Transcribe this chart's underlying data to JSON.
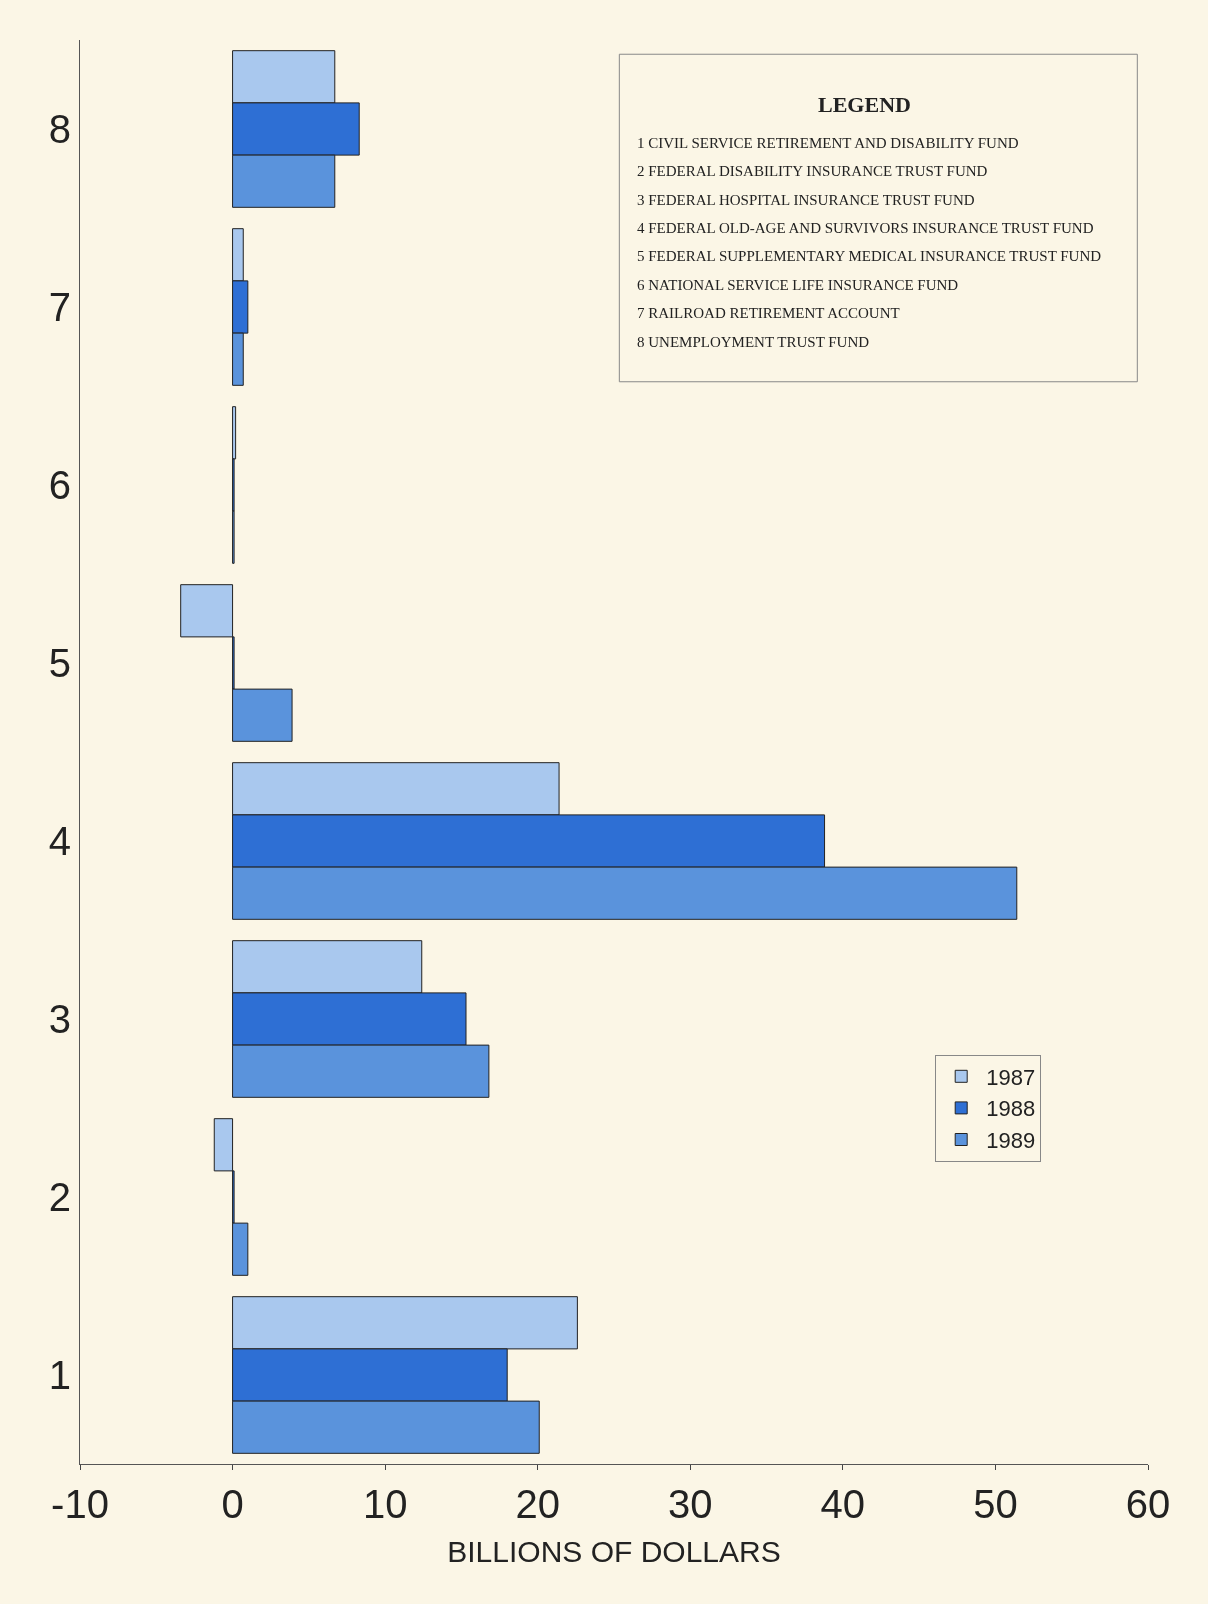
{
  "chart_data": {
    "type": "bar",
    "orientation": "horizontal",
    "xlabel": "BILLIONS OF DOLLARS",
    "categories": [
      "8",
      "7",
      "6",
      "5",
      "4",
      "3",
      "2",
      "1"
    ],
    "series": [
      {
        "name": "1987",
        "color": "#a9c8ee",
        "values": [
          6.7,
          0.7,
          0.2,
          -3.4,
          21.4,
          12.4,
          -1.2,
          22.6
        ]
      },
      {
        "name": "1988",
        "color": "#2e6fd4",
        "values": [
          8.3,
          1.0,
          0.1,
          0.1,
          38.8,
          15.3,
          0.1,
          18.0
        ]
      },
      {
        "name": "1989",
        "color": "#5a93dc",
        "values": [
          6.7,
          0.7,
          0.1,
          3.9,
          51.4,
          16.8,
          1.0,
          20.1
        ]
      }
    ],
    "xlim": [
      -10,
      60
    ],
    "xticks": [
      -10,
      0,
      10,
      20,
      30,
      40,
      50,
      60
    ],
    "grid": false,
    "legend": "bottom right",
    "annotations": [
      "LEGEND",
      "1 CIVIL SERVICE RETIREMENT AND DISABILITY FUND",
      "2 FEDERAL DISABILITY INSURANCE TRUST FUND",
      "3 FEDERAL HOSPITAL INSURANCE TRUST FUND",
      "4 FEDERAL OLD-AGE AND SURVIVORS INSURANCE TRUST FUND",
      "5 FEDERAL SUPPLEMENTARY MEDICAL INSURANCE TRUST FUND",
      "6 NATIONAL SERVICE LIFE INSURANCE FUND",
      "7 RAILROAD RETIREMENT ACCOUNT",
      "8 UNEMPLOYMENT TRUST FUND"
    ]
  }
}
